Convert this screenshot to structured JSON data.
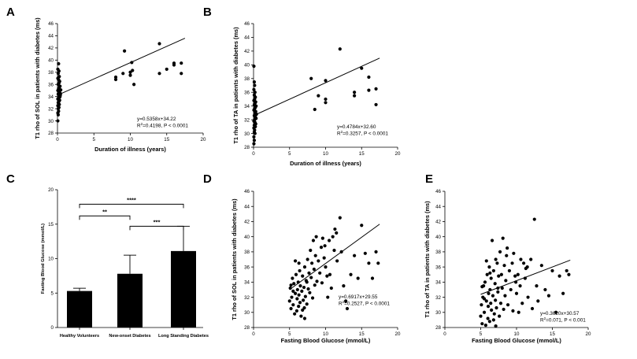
{
  "chart_data": [
    {
      "id": "A",
      "type": "scatter",
      "letter": "A",
      "xlabel": "Duration of illness (years)",
      "ylabel": "T1 rho of SOL in patients with diabetes  (ms)",
      "xlim": [
        0,
        20
      ],
      "ylim": [
        28,
        46
      ],
      "xticks": [
        0,
        5,
        10,
        15,
        20
      ],
      "yticks": [
        28,
        30,
        32,
        34,
        36,
        38,
        40,
        42,
        44,
        46
      ],
      "regression": {
        "slope": 0.5358,
        "intercept": 34.22,
        "x_range": [
          0,
          17.5
        ]
      },
      "equation": "y=0.5358x+34.22",
      "stats": [
        "R",
        "2",
        "=0.4198, P < 0.0001"
      ],
      "points": [
        [
          0.05,
          30
        ],
        [
          0.1,
          31
        ],
        [
          0.05,
          31.3
        ],
        [
          0.15,
          31.6
        ],
        [
          0.1,
          32
        ],
        [
          0.2,
          32.2
        ],
        [
          0.05,
          32.5
        ],
        [
          0.25,
          32.7
        ],
        [
          0.1,
          33
        ],
        [
          0.2,
          33.2
        ],
        [
          0.3,
          33.4
        ],
        [
          0.05,
          33.6
        ],
        [
          0.15,
          33.8
        ],
        [
          0.35,
          34
        ],
        [
          0.25,
          34.2
        ],
        [
          0.1,
          34.4
        ],
        [
          0.4,
          34.5
        ],
        [
          0.2,
          34.7
        ],
        [
          0.3,
          34.9
        ],
        [
          0.05,
          35
        ],
        [
          0.45,
          35.1
        ],
        [
          0.15,
          35.3
        ],
        [
          0.25,
          35.5
        ],
        [
          0.35,
          35.7
        ],
        [
          0.1,
          36
        ],
        [
          0.2,
          36.2
        ],
        [
          0.3,
          36.5
        ],
        [
          0.15,
          36.8
        ],
        [
          0.05,
          37
        ],
        [
          0.25,
          37.3
        ],
        [
          0.1,
          37.8
        ],
        [
          0.2,
          38.2
        ],
        [
          0.05,
          38.5
        ],
        [
          0.15,
          39.4
        ],
        [
          0.3,
          33.9
        ],
        [
          0.4,
          34.3
        ],
        [
          8,
          36.8
        ],
        [
          8,
          37.2
        ],
        [
          9,
          37.8
        ],
        [
          9.2,
          41.5
        ],
        [
          10,
          38
        ],
        [
          10,
          37.5
        ],
        [
          10.2,
          39.6
        ],
        [
          10.5,
          36
        ],
        [
          10.3,
          38.3
        ],
        [
          14,
          42.7
        ],
        [
          14,
          37.8
        ],
        [
          15,
          38.5
        ],
        [
          16,
          39.5
        ],
        [
          16,
          39.2
        ],
        [
          17,
          39.5
        ],
        [
          17,
          37.8
        ]
      ]
    },
    {
      "id": "B",
      "type": "scatter",
      "letter": "B",
      "xlabel": "Duration of illness (years)",
      "ylabel": "T1 rho of TA in patients with diabetes  (ms)",
      "xlim": [
        0,
        20
      ],
      "ylim": [
        28,
        46
      ],
      "xticks": [
        0,
        5,
        10,
        15,
        20
      ],
      "yticks": [
        28,
        30,
        32,
        34,
        36,
        38,
        40,
        42,
        44,
        46
      ],
      "regression": {
        "slope": 0.4784,
        "intercept": 32.6,
        "x_range": [
          0,
          17.5
        ]
      },
      "equation": "y=0.4784x+32.60",
      "stats": [
        "R",
        "2",
        "=0.3257, P < 0.0001"
      ],
      "points": [
        [
          0.05,
          28.5
        ],
        [
          0.1,
          29
        ],
        [
          0.05,
          29.5
        ],
        [
          0.2,
          30
        ],
        [
          0.1,
          30.2
        ],
        [
          0.15,
          30.5
        ],
        [
          0.05,
          30.8
        ],
        [
          0.25,
          31
        ],
        [
          0.1,
          31.2
        ],
        [
          0.3,
          31.4
        ],
        [
          0.2,
          31.6
        ],
        [
          0.05,
          31.8
        ],
        [
          0.15,
          32
        ],
        [
          0.35,
          32.2
        ],
        [
          0.25,
          32.4
        ],
        [
          0.1,
          32.6
        ],
        [
          0.4,
          32.8
        ],
        [
          0.2,
          33
        ],
        [
          0.3,
          33.2
        ],
        [
          0.05,
          33.4
        ],
        [
          0.15,
          33.6
        ],
        [
          0.25,
          33.8
        ],
        [
          0.35,
          34
        ],
        [
          0.1,
          34.2
        ],
        [
          0.2,
          34.4
        ],
        [
          0.3,
          34.6
        ],
        [
          0.05,
          34.8
        ],
        [
          0.15,
          35
        ],
        [
          0.25,
          35.3
        ],
        [
          0.1,
          35.6
        ],
        [
          0.2,
          36
        ],
        [
          0.05,
          36.4
        ],
        [
          0.15,
          37
        ],
        [
          0.1,
          37.5
        ],
        [
          0.05,
          39.8
        ],
        [
          8,
          38
        ],
        [
          8.5,
          33.5
        ],
        [
          9,
          35.5
        ],
        [
          10,
          37.7
        ],
        [
          10,
          35
        ],
        [
          10,
          34.5
        ],
        [
          12,
          42.3
        ],
        [
          14,
          36
        ],
        [
          14,
          35.5
        ],
        [
          15,
          39.5
        ],
        [
          16,
          38.2
        ],
        [
          16,
          36.3
        ],
        [
          17,
          36.5
        ],
        [
          17,
          34.2
        ]
      ]
    },
    {
      "id": "C",
      "type": "bar",
      "letter": "C",
      "xlabel": "",
      "ylabel": "Fasting Blood Glucose (mmol/L)",
      "ylim": [
        0,
        20
      ],
      "yticks": [
        0,
        5,
        10,
        15,
        20
      ],
      "categories": [
        "Healthy Volunteers",
        "New-onset Diabetes",
        "Long Standing Diabetes"
      ],
      "values": [
        5.3,
        7.8,
        11.1
      ],
      "errors": [
        0.4,
        2.7,
        3.6
      ],
      "significance": [
        {
          "from": 0,
          "to": 1,
          "label": "**"
        },
        {
          "from": 1,
          "to": 2,
          "label": "***"
        },
        {
          "from": 0,
          "to": 2,
          "label": "****"
        }
      ]
    },
    {
      "id": "D",
      "type": "scatter",
      "letter": "D",
      "xlabel": "Fasting Blood Glucose (mmol/L)",
      "ylabel": "T1 rho of SOL in patients with diabetes  (ms)",
      "xlim": [
        0,
        20
      ],
      "ylim": [
        28,
        46
      ],
      "xticks": [
        0,
        5,
        10,
        15,
        20
      ],
      "yticks": [
        28,
        30,
        32,
        34,
        36,
        38,
        40,
        42,
        44,
        46
      ],
      "regression": {
        "slope": 0.6917,
        "intercept": 29.55,
        "x_range": [
          5,
          17.5
        ]
      },
      "equation": "y=0.6917x+29.55",
      "stats": [
        "R",
        "2",
        "=0.2527, P < 0.0001"
      ],
      "points": [
        [
          5,
          31.5
        ],
        [
          5.1,
          33.2
        ],
        [
          5.2,
          30.5
        ],
        [
          5.3,
          32
        ],
        [
          5.4,
          34.5
        ],
        [
          5.5,
          31
        ],
        [
          5.6,
          33.8
        ],
        [
          5.7,
          29.8
        ],
        [
          5.8,
          32.5
        ],
        [
          5.9,
          35
        ],
        [
          6,
          30.2
        ],
        [
          6.05,
          31.8
        ],
        [
          6.1,
          33
        ],
        [
          6.2,
          34
        ],
        [
          6.25,
          30.8
        ],
        [
          6.3,
          32.3
        ],
        [
          6.4,
          35.5
        ],
        [
          6.45,
          31.3
        ],
        [
          6.5,
          33.5
        ],
        [
          6.6,
          29.5
        ],
        [
          6.7,
          32.8
        ],
        [
          6.8,
          34.8
        ],
        [
          6.9,
          31.6
        ],
        [
          7,
          33.3
        ],
        [
          7.05,
          30.6
        ],
        [
          7.1,
          36
        ],
        [
          7.2,
          32.1
        ],
        [
          7.3,
          34.2
        ],
        [
          7.4,
          31.1
        ],
        [
          7.5,
          37
        ],
        [
          7.6,
          33.1
        ],
        [
          7.7,
          35.2
        ],
        [
          7.8,
          32.6
        ],
        [
          7.9,
          38.2
        ],
        [
          8,
          34.6
        ],
        [
          8.1,
          36.5
        ],
        [
          8.2,
          31.9
        ],
        [
          8.3,
          39.5
        ],
        [
          8.4,
          35.7
        ],
        [
          8.5,
          33.6
        ],
        [
          8.6,
          37.5
        ],
        [
          8.8,
          34.1
        ],
        [
          9,
          36.8
        ],
        [
          9.2,
          35.2
        ],
        [
          9.4,
          38.6
        ],
        [
          9.5,
          33.9
        ],
        [
          9.6,
          39.8
        ],
        [
          9.8,
          37.2
        ],
        [
          10,
          36
        ],
        [
          10.2,
          34.8
        ],
        [
          10.3,
          32
        ],
        [
          10.5,
          39.5
        ],
        [
          10.6,
          35
        ],
        [
          10.8,
          33.2
        ],
        [
          11,
          40
        ],
        [
          11.2,
          38.2
        ],
        [
          11.3,
          41
        ],
        [
          11.5,
          40.5
        ],
        [
          11.6,
          36.8
        ],
        [
          12,
          42.5
        ],
        [
          12.2,
          38
        ],
        [
          12.5,
          33.5
        ],
        [
          12.8,
          31.5
        ],
        [
          13,
          30.5
        ],
        [
          13.5,
          35
        ],
        [
          14,
          37.5
        ],
        [
          14.5,
          34.5
        ],
        [
          15,
          41.5
        ],
        [
          15.5,
          37.8
        ],
        [
          16,
          36.5
        ],
        [
          16.5,
          34.5
        ],
        [
          17,
          38
        ],
        [
          17.3,
          36.5
        ],
        [
          5.5,
          32.8
        ],
        [
          6.3,
          36.5
        ],
        [
          7.4,
          34
        ],
        [
          8.7,
          40
        ],
        [
          9.9,
          38.8
        ],
        [
          5.2,
          33.6
        ],
        [
          6.8,
          30.3
        ],
        [
          5.8,
          36.8
        ],
        [
          7.1,
          29.2
        ]
      ]
    },
    {
      "id": "E",
      "type": "scatter",
      "letter": "E",
      "xlabel": "Fasting Blood Glucose (mmol/L)",
      "ylabel": "T1 rho of TA in patients with diabetes  (ms)",
      "xlim": [
        0,
        20
      ],
      "ylim": [
        28,
        46
      ],
      "xticks": [
        0,
        5,
        10,
        15,
        20
      ],
      "yticks": [
        28,
        30,
        32,
        34,
        36,
        38,
        40,
        42,
        44,
        46
      ],
      "regression": {
        "slope": 0.362,
        "intercept": 30.57,
        "x_range": [
          5,
          17.5
        ]
      },
      "equation": "y=0.3620x+30.57",
      "stats": [
        "R",
        "2",
        "=0.071, P < 0.001"
      ],
      "points": [
        [
          5,
          29.5
        ],
        [
          5.1,
          31
        ],
        [
          5.2,
          28.5
        ],
        [
          5.3,
          32
        ],
        [
          5.4,
          33.5
        ],
        [
          5.5,
          30
        ],
        [
          5.6,
          34
        ],
        [
          5.7,
          28.3
        ],
        [
          5.8,
          31.5
        ],
        [
          5.9,
          35
        ],
        [
          6,
          29.2
        ],
        [
          6.05,
          30.8
        ],
        [
          6.1,
          32.5
        ],
        [
          6.2,
          36
        ],
        [
          6.25,
          28.8
        ],
        [
          6.3,
          33
        ],
        [
          6.4,
          31.2
        ],
        [
          6.45,
          34.5
        ],
        [
          6.5,
          30.3
        ],
        [
          6.6,
          39.5
        ],
        [
          6.7,
          32.2
        ],
        [
          6.8,
          35.5
        ],
        [
          6.9,
          29.8
        ],
        [
          7,
          33.8
        ],
        [
          7.05,
          31.6
        ],
        [
          7.1,
          37
        ],
        [
          7.2,
          30.6
        ],
        [
          7.3,
          36.5
        ],
        [
          7.4,
          32.7
        ],
        [
          7.5,
          34.8
        ],
        [
          7.6,
          29.5
        ],
        [
          7.7,
          38
        ],
        [
          7.8,
          31.2
        ],
        [
          7.9,
          35
        ],
        [
          8,
          33.2
        ],
        [
          8.1,
          39.8
        ],
        [
          8.2,
          30.4
        ],
        [
          8.3,
          36.2
        ],
        [
          8.4,
          32.2
        ],
        [
          8.5,
          34.2
        ],
        [
          8.6,
          37.5
        ],
        [
          8.8,
          31
        ],
        [
          9,
          35.5
        ],
        [
          9.2,
          33
        ],
        [
          9.4,
          36.5
        ],
        [
          9.5,
          30.2
        ],
        [
          9.6,
          37.8
        ],
        [
          9.8,
          34.8
        ],
        [
          10,
          32.5
        ],
        [
          10.2,
          35
        ],
        [
          10.3,
          30
        ],
        [
          10.5,
          33.5
        ],
        [
          10.6,
          37
        ],
        [
          10.8,
          31.2
        ],
        [
          11,
          36.5
        ],
        [
          11.2,
          34.5
        ],
        [
          11.3,
          35.8
        ],
        [
          11.5,
          36
        ],
        [
          11.6,
          32
        ],
        [
          12,
          37
        ],
        [
          12.2,
          30.5
        ],
        [
          12.5,
          42.3
        ],
        [
          12.8,
          33.5
        ],
        [
          13,
          31.5
        ],
        [
          13.5,
          36.2
        ],
        [
          14,
          33
        ],
        [
          14.5,
          32.2
        ],
        [
          15,
          35.5
        ],
        [
          15.5,
          30
        ],
        [
          16,
          34.8
        ],
        [
          16.5,
          32.5
        ],
        [
          17,
          35.5
        ],
        [
          17.3,
          35
        ],
        [
          5.5,
          31.8
        ],
        [
          6.3,
          35.2
        ],
        [
          7.4,
          33.2
        ],
        [
          8.7,
          38.5
        ],
        [
          9.9,
          34
        ],
        [
          5.2,
          33.4
        ],
        [
          6.8,
          29
        ],
        [
          5.8,
          36.8
        ],
        [
          7.1,
          28.2
        ]
      ]
    }
  ]
}
